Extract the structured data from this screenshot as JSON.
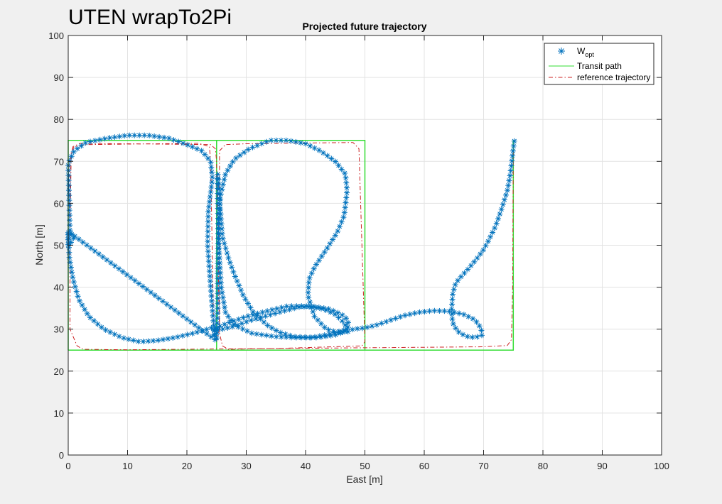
{
  "window": {
    "title": "UTEN wrapTo2Pi"
  },
  "chart_data": {
    "type": "line",
    "title": "Projected future trajectory",
    "xlabel": "East [m]",
    "ylabel": "North [m]",
    "xlim": [
      0,
      100
    ],
    "ylim": [
      0,
      100
    ],
    "xticks": [
      0,
      10,
      20,
      30,
      40,
      50,
      60,
      70,
      80,
      90,
      100
    ],
    "yticks": [
      0,
      10,
      20,
      30,
      40,
      50,
      60,
      70,
      80,
      90,
      100
    ],
    "grid": true,
    "legend_position": "top-right",
    "legend": [
      {
        "name": "W",
        "subscript": "opt",
        "style": "marker-star",
        "color": "#0072bd"
      },
      {
        "name": "Transit path",
        "style": "solid",
        "color": "#33dd33"
      },
      {
        "name": "reference trajectory",
        "style": "dash-dot",
        "color": "#cc2222"
      }
    ],
    "series": [
      {
        "name": "Transit path",
        "color": "#33dd33",
        "points": [
          [
            0,
            25
          ],
          [
            0,
            75
          ],
          [
            25,
            75
          ],
          [
            25,
            25
          ],
          [
            25,
            75
          ],
          [
            50,
            75
          ],
          [
            50,
            25
          ],
          [
            75,
            25
          ],
          [
            75,
            75
          ],
          [
            75,
            25
          ],
          [
            0,
            25
          ]
        ]
      },
      {
        "name": "reference trajectory",
        "color": "#cc2222",
        "points": [
          [
            0.3,
            52
          ],
          [
            0.5,
            72
          ],
          [
            1,
            73.5
          ],
          [
            3,
            74
          ],
          [
            22,
            74.3
          ],
          [
            23.8,
            73.5
          ],
          [
            24,
            70
          ],
          [
            24.5,
            30
          ],
          [
            25,
            27
          ],
          [
            25.5,
            30
          ],
          [
            25.5,
            72.5
          ],
          [
            26.5,
            74
          ],
          [
            30,
            74.2
          ],
          [
            48,
            74.5
          ],
          [
            49,
            73
          ],
          [
            50,
            27
          ],
          [
            49.5,
            26
          ],
          [
            35,
            25.4
          ],
          [
            27,
            25.2
          ],
          [
            26,
            26
          ],
          [
            25.5,
            29
          ],
          [
            25.2,
            50
          ],
          [
            25,
            70
          ],
          [
            24.8,
            73
          ],
          [
            24,
            74
          ],
          [
            2,
            74.3
          ],
          [
            0.8,
            73.5
          ],
          [
            0.3,
            70
          ],
          [
            0.3,
            30
          ],
          [
            1.5,
            26
          ],
          [
            2.5,
            25.2
          ],
          [
            10,
            25.1
          ],
          [
            70,
            25.8
          ],
          [
            74,
            26.1
          ],
          [
            74.7,
            27.5
          ],
          [
            74.9,
            40
          ],
          [
            75,
            74
          ]
        ]
      },
      {
        "name": "W",
        "color": "#0072bd",
        "points": [
          [
            0,
            53
          ],
          [
            0.2,
            47
          ],
          [
            0.8,
            42
          ],
          [
            1.8,
            37
          ],
          [
            3.5,
            33
          ],
          [
            6,
            30
          ],
          [
            9,
            28
          ],
          [
            12,
            27
          ],
          [
            15,
            27.3
          ],
          [
            18,
            28
          ],
          [
            21,
            29
          ],
          [
            23.5,
            30
          ],
          [
            24.5,
            30.5
          ],
          [
            24.7,
            28
          ],
          [
            24.4,
            33
          ],
          [
            24,
            40
          ],
          [
            23.5,
            50
          ],
          [
            23.6,
            58
          ],
          [
            24.3,
            66
          ],
          [
            24,
            70
          ],
          [
            22.5,
            72.5
          ],
          [
            20,
            74
          ],
          [
            17,
            75.5
          ],
          [
            13.5,
            76.2
          ],
          [
            10,
            76.2
          ],
          [
            6.5,
            75.5
          ],
          [
            3,
            74.5
          ],
          [
            1,
            72.5
          ],
          [
            0,
            69.5
          ],
          [
            0.3,
            53
          ],
          [
            1,
            52
          ],
          [
            0.2,
            50
          ],
          [
            0,
            50
          ],
          [
            0,
            53
          ],
          [
            0.3,
            53
          ],
          [
            25,
            27.2
          ],
          [
            25.2,
            35
          ],
          [
            25.2,
            45
          ],
          [
            25.3,
            55
          ],
          [
            25.7,
            62
          ],
          [
            26.5,
            67
          ],
          [
            28,
            70.5
          ],
          [
            30.5,
            73
          ],
          [
            34,
            75
          ],
          [
            37,
            75
          ],
          [
            40,
            74.2
          ],
          [
            42.5,
            72.5
          ],
          [
            45,
            70
          ],
          [
            46.7,
            67
          ],
          [
            47,
            63
          ],
          [
            46.5,
            57
          ],
          [
            45.3,
            53
          ],
          [
            43.5,
            49
          ],
          [
            41.6,
            45
          ],
          [
            40.6,
            42
          ],
          [
            40.4,
            38
          ],
          [
            41.5,
            33
          ],
          [
            43.5,
            30
          ],
          [
            46,
            29
          ],
          [
            47,
            30
          ],
          [
            46.5,
            31.5
          ],
          [
            45,
            33.5
          ],
          [
            43,
            34.8
          ],
          [
            40,
            35.5
          ],
          [
            37,
            35.5
          ],
          [
            34,
            34.5
          ],
          [
            30,
            33
          ],
          [
            27,
            31.5
          ],
          [
            25.2,
            30.5
          ],
          [
            24.7,
            29.7
          ],
          [
            26,
            30
          ],
          [
            28,
            30.7
          ],
          [
            30.5,
            32
          ],
          [
            33,
            33
          ],
          [
            36,
            34.2
          ],
          [
            39,
            35.3
          ],
          [
            41.5,
            35.4
          ],
          [
            44,
            34.8
          ],
          [
            46,
            33.6
          ],
          [
            47,
            32.4
          ],
          [
            47.3,
            31
          ],
          [
            46.7,
            29.5
          ],
          [
            45,
            28.6
          ],
          [
            42,
            28
          ],
          [
            38,
            28
          ],
          [
            35,
            28.2
          ],
          [
            31,
            29
          ],
          [
            28,
            31
          ],
          [
            26.5,
            34
          ],
          [
            25.8,
            40
          ],
          [
            25.4,
            50
          ],
          [
            25.2,
            60
          ],
          [
            25.2,
            67
          ],
          [
            26,
            52
          ],
          [
            27,
            47
          ],
          [
            28,
            43
          ],
          [
            29.5,
            38
          ],
          [
            31.2,
            34
          ],
          [
            33.5,
            31
          ],
          [
            35.5,
            29.3
          ],
          [
            38,
            28.2
          ],
          [
            41,
            28
          ],
          [
            44,
            28.8
          ],
          [
            46.5,
            29.8
          ],
          [
            47,
            29.3
          ],
          [
            48,
            30
          ],
          [
            50,
            30.3
          ],
          [
            52,
            31
          ],
          [
            54,
            32
          ],
          [
            56.5,
            33.2
          ],
          [
            59,
            34
          ],
          [
            61.5,
            34.4
          ],
          [
            64,
            34.3
          ],
          [
            66.5,
            33.6
          ],
          [
            68.5,
            32.3
          ],
          [
            69.6,
            30.2
          ],
          [
            69.7,
            28.5
          ],
          [
            68.5,
            28
          ],
          [
            67,
            28.3
          ],
          [
            65.6,
            29.5
          ],
          [
            64.8,
            31.5
          ],
          [
            64.6,
            34.2
          ],
          [
            64.8,
            38.5
          ],
          [
            65.3,
            41
          ],
          [
            66.2,
            42.5
          ],
          [
            67.5,
            44.5
          ],
          [
            68.5,
            46.2
          ],
          [
            69.8,
            48.5
          ],
          [
            70.8,
            51
          ],
          [
            72,
            54.5
          ],
          [
            73,
            58.5
          ],
          [
            74,
            63
          ],
          [
            74.5,
            67
          ],
          [
            74.8,
            70.5
          ],
          [
            75,
            73
          ],
          [
            75.2,
            75
          ]
        ]
      }
    ]
  }
}
